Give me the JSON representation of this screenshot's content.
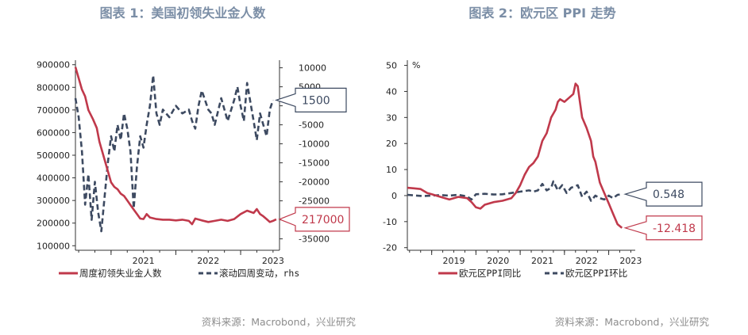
{
  "left_panel": {
    "title": "图表 1：美国初领失业金人数",
    "source": "资料来源：Macrobond，兴业研究",
    "legend": {
      "series_1": "周度初领失业金人数",
      "series_2": "滚动四周变动，rhs"
    },
    "callouts": {
      "red": "217000",
      "blue": "1500"
    }
  },
  "right_panel": {
    "title": "图表 2：欧元区 PPI 走势",
    "source": "资料来源：Macrobond，兴业研究",
    "legend": {
      "series_1": "欧元区PPI同比",
      "series_2": "欧元区PPI环比"
    },
    "callouts": {
      "blue": "0.548",
      "red": "-12.418"
    }
  },
  "colors": {
    "red": "#c0394b",
    "navy": "#3d4a61",
    "title": "#7b8ea6",
    "source": "#8d8d8d"
  },
  "chart_data": [
    {
      "type": "line",
      "title": "图表 1：美国初领失业金人数",
      "x_ticks": [
        "2021",
        "2022",
        "2023"
      ],
      "x_range": [
        2020.45,
        2023.6
      ],
      "y_left": {
        "range": [
          80000,
          920000
        ],
        "ticks": [
          "900000",
          "800000",
          "700000",
          "600000",
          "500000",
          "400000",
          "300000",
          "200000",
          "100000"
        ]
      },
      "y_right": {
        "range": [
          -38000,
          12000
        ],
        "ticks": [
          "10000",
          "5000",
          "0",
          "-5000",
          "-10000",
          "-15000",
          "-20000",
          "-25000",
          "-30000",
          "-35000"
        ],
        "label": "rhs"
      },
      "series": [
        {
          "name": "周度初领失业金人数",
          "axis": "left",
          "style": "solid",
          "color": "#c0394b",
          "points": [
            [
              2020.45,
              890000
            ],
            [
              2020.5,
              840000
            ],
            [
              2020.55,
              790000
            ],
            [
              2020.6,
              760000
            ],
            [
              2020.65,
              700000
            ],
            [
              2020.72,
              660000
            ],
            [
              2020.78,
              620000
            ],
            [
              2020.82,
              560000
            ],
            [
              2020.88,
              500000
            ],
            [
              2020.95,
              430000
            ],
            [
              2021.0,
              380000
            ],
            [
              2021.05,
              360000
            ],
            [
              2021.1,
              350000
            ],
            [
              2021.15,
              330000
            ],
            [
              2021.2,
              320000
            ],
            [
              2021.25,
              300000
            ],
            [
              2021.3,
              280000
            ],
            [
              2021.35,
              260000
            ],
            [
              2021.4,
              240000
            ],
            [
              2021.45,
              220000
            ],
            [
              2021.5,
              218000
            ],
            [
              2021.55,
              240000
            ],
            [
              2021.6,
              225000
            ],
            [
              2021.7,
              218000
            ],
            [
              2021.8,
              215000
            ],
            [
              2021.9,
              215000
            ],
            [
              2022.0,
              212000
            ],
            [
              2022.1,
              215000
            ],
            [
              2022.2,
              210000
            ],
            [
              2022.25,
              195000
            ],
            [
              2022.3,
              220000
            ],
            [
              2022.4,
              212000
            ],
            [
              2022.5,
              205000
            ],
            [
              2022.6,
              210000
            ],
            [
              2022.7,
              215000
            ],
            [
              2022.8,
              210000
            ],
            [
              2022.9,
              218000
            ],
            [
              2023.0,
              240000
            ],
            [
              2023.1,
              255000
            ],
            [
              2023.2,
              245000
            ],
            [
              2023.25,
              262000
            ],
            [
              2023.3,
              240000
            ],
            [
              2023.35,
              230000
            ],
            [
              2023.4,
              218000
            ],
            [
              2023.45,
              205000
            ],
            [
              2023.5,
              210000
            ],
            [
              2023.55,
              217000
            ]
          ]
        },
        {
          "name": "滚动四周变动，rhs",
          "axis": "right",
          "style": "dashed",
          "color": "#3d4a61",
          "points": [
            [
              2020.45,
              2000
            ],
            [
              2020.5,
              -3000
            ],
            [
              2020.55,
              -12000
            ],
            [
              2020.6,
              -26000
            ],
            [
              2020.65,
              -18000
            ],
            [
              2020.7,
              -30000
            ],
            [
              2020.75,
              -20000
            ],
            [
              2020.8,
              -28000
            ],
            [
              2020.85,
              -33000
            ],
            [
              2020.9,
              -24000
            ],
            [
              2020.95,
              -15000
            ],
            [
              2021.0,
              -8000
            ],
            [
              2021.05,
              -12000
            ],
            [
              2021.1,
              -5000
            ],
            [
              2021.15,
              -9000
            ],
            [
              2021.2,
              -2000
            ],
            [
              2021.25,
              -6000
            ],
            [
              2021.3,
              -12000
            ],
            [
              2021.35,
              -27000
            ],
            [
              2021.4,
              -16000
            ],
            [
              2021.45,
              -8000
            ],
            [
              2021.5,
              -11000
            ],
            [
              2021.55,
              -5000
            ],
            [
              2021.6,
              0
            ],
            [
              2021.65,
              8000
            ],
            [
              2021.7,
              -2000
            ],
            [
              2021.75,
              -5000
            ],
            [
              2021.8,
              -1000
            ],
            [
              2021.9,
              -3000
            ],
            [
              2022.0,
              0
            ],
            [
              2022.1,
              -2000
            ],
            [
              2022.2,
              -1000
            ],
            [
              2022.25,
              -4000
            ],
            [
              2022.3,
              -6000
            ],
            [
              2022.35,
              0
            ],
            [
              2022.4,
              4000
            ],
            [
              2022.5,
              -1000
            ],
            [
              2022.55,
              -2000
            ],
            [
              2022.6,
              -5000
            ],
            [
              2022.7,
              2000
            ],
            [
              2022.8,
              -4000
            ],
            [
              2022.9,
              1500
            ],
            [
              2022.95,
              5000
            ],
            [
              2023.0,
              0
            ],
            [
              2023.05,
              -4000
            ],
            [
              2023.1,
              6000
            ],
            [
              2023.15,
              1000
            ],
            [
              2023.2,
              -4000
            ],
            [
              2023.25,
              -9000
            ],
            [
              2023.3,
              -2000
            ],
            [
              2023.35,
              -5000
            ],
            [
              2023.4,
              -8000
            ],
            [
              2023.45,
              -1000
            ],
            [
              2023.5,
              1500
            ]
          ]
        }
      ],
      "annotations": [
        "217000",
        "1500"
      ],
      "grid": false,
      "legend_position": "bottom"
    },
    {
      "type": "line",
      "title": "图表 2：欧元区 PPI 走势",
      "x_ticks": [
        "2019",
        "2020",
        "2021",
        "2022",
        "2023"
      ],
      "x_range": [
        2018.45,
        2023.6
      ],
      "y": {
        "range": [
          -21,
          52
        ],
        "ticks": [
          "50",
          "40",
          "30",
          "20",
          "10",
          "0",
          "-10",
          "-20"
        ],
        "unit": "%"
      },
      "series": [
        {
          "name": "欧元区PPI同比",
          "style": "solid",
          "color": "#c0394b",
          "points": [
            [
              2018.45,
              3.0
            ],
            [
              2018.6,
              2.8
            ],
            [
              2018.75,
              2.5
            ],
            [
              2018.9,
              1.0
            ],
            [
              2019.0,
              0.5
            ],
            [
              2019.2,
              -0.5
            ],
            [
              2019.4,
              -1.5
            ],
            [
              2019.6,
              -0.5
            ],
            [
              2019.8,
              -1.0
            ],
            [
              2019.9,
              -2.5
            ],
            [
              2020.0,
              -4.5
            ],
            [
              2020.1,
              -5.0
            ],
            [
              2020.2,
              -3.5
            ],
            [
              2020.4,
              -2.5
            ],
            [
              2020.6,
              -2.0
            ],
            [
              2020.8,
              -1.0
            ],
            [
              2020.9,
              1.0
            ],
            [
              2021.0,
              4.0
            ],
            [
              2021.1,
              8.0
            ],
            [
              2021.2,
              11.0
            ],
            [
              2021.3,
              12.5
            ],
            [
              2021.4,
              15.0
            ],
            [
              2021.5,
              21.0
            ],
            [
              2021.6,
              24.0
            ],
            [
              2021.7,
              30.0
            ],
            [
              2021.8,
              33.0
            ],
            [
              2021.85,
              36.0
            ],
            [
              2021.9,
              37.0
            ],
            [
              2022.0,
              36.0
            ],
            [
              2022.1,
              37.5
            ],
            [
              2022.2,
              39.0
            ],
            [
              2022.25,
              43.0
            ],
            [
              2022.3,
              42.0
            ],
            [
              2022.35,
              36.0
            ],
            [
              2022.4,
              30.0
            ],
            [
              2022.5,
              26.0
            ],
            [
              2022.6,
              21.0
            ],
            [
              2022.65,
              15.0
            ],
            [
              2022.7,
              13.0
            ],
            [
              2022.8,
              5.0
            ],
            [
              2022.9,
              1.0
            ],
            [
              2023.0,
              -3.0
            ],
            [
              2023.1,
              -7.0
            ],
            [
              2023.2,
              -11.0
            ],
            [
              2023.3,
              -12.418
            ]
          ]
        },
        {
          "name": "欧元区PPI环比",
          "style": "dashed",
          "color": "#3d4a61",
          "points": [
            [
              2018.45,
              0.3
            ],
            [
              2018.8,
              -0.2
            ],
            [
              2019.0,
              0
            ],
            [
              2019.2,
              0.2
            ],
            [
              2019.4,
              0
            ],
            [
              2019.6,
              0.3
            ],
            [
              2019.8,
              -0.3
            ],
            [
              2019.9,
              -1.5
            ],
            [
              2020.0,
              0.5
            ],
            [
              2020.2,
              0.7
            ],
            [
              2020.4,
              0.4
            ],
            [
              2020.6,
              0.5
            ],
            [
              2020.8,
              1.0
            ],
            [
              2021.0,
              1.5
            ],
            [
              2021.2,
              2.0
            ],
            [
              2021.3,
              1.5
            ],
            [
              2021.4,
              2.0
            ],
            [
              2021.5,
              4.5
            ],
            [
              2021.6,
              2.0
            ],
            [
              2021.7,
              3.0
            ],
            [
              2021.75,
              5.5
            ],
            [
              2021.85,
              2.0
            ],
            [
              2021.95,
              4.0
            ],
            [
              2022.05,
              1.0
            ],
            [
              2022.15,
              3.0
            ],
            [
              2022.3,
              4.0
            ],
            [
              2022.4,
              -0.5
            ],
            [
              2022.5,
              1.5
            ],
            [
              2022.6,
              -2.0
            ],
            [
              2022.7,
              0
            ],
            [
              2022.8,
              -1.0
            ],
            [
              2022.9,
              -1.5
            ],
            [
              2023.0,
              0
            ],
            [
              2023.1,
              -1.0
            ],
            [
              2023.2,
              0.3
            ],
            [
              2023.3,
              0.548
            ]
          ]
        }
      ],
      "annotations": [
        "0.548",
        "-12.418"
      ],
      "grid": false,
      "legend_position": "bottom"
    }
  ]
}
